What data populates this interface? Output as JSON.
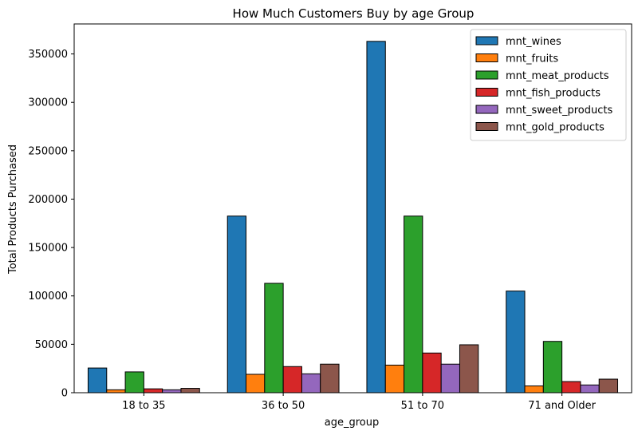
{
  "chart_data": {
    "type": "bar",
    "title": "How Much Customers Buy by age Group",
    "xlabel": "age_group",
    "ylabel": "Total Products Purchased",
    "categories": [
      "18 to 35",
      "36 to 50",
      "51 to 70",
      "71 and Older"
    ],
    "ylim": [
      0,
      381000
    ],
    "yticks": [
      0,
      50000,
      100000,
      150000,
      200000,
      250000,
      300000,
      350000
    ],
    "legend_position": "top-right",
    "grid": false,
    "series": [
      {
        "name": "mnt_wines",
        "color": "#1f77b4",
        "values": [
          25500,
          182500,
          363000,
          105000
        ]
      },
      {
        "name": "mnt_fruits",
        "color": "#ff7f0e",
        "values": [
          3000,
          19000,
          28500,
          7000
        ]
      },
      {
        "name": "mnt_meat_products",
        "color": "#2ca02c",
        "values": [
          21500,
          113000,
          182500,
          53000
        ]
      },
      {
        "name": "mnt_fish_products",
        "color": "#d62728",
        "values": [
          4000,
          27000,
          41000,
          11500
        ]
      },
      {
        "name": "mnt_sweet_products",
        "color": "#9467bd",
        "values": [
          3000,
          19500,
          29500,
          8000
        ]
      },
      {
        "name": "mnt_gold_products",
        "color": "#8c564b",
        "values": [
          4500,
          29500,
          49500,
          14000
        ]
      }
    ]
  }
}
